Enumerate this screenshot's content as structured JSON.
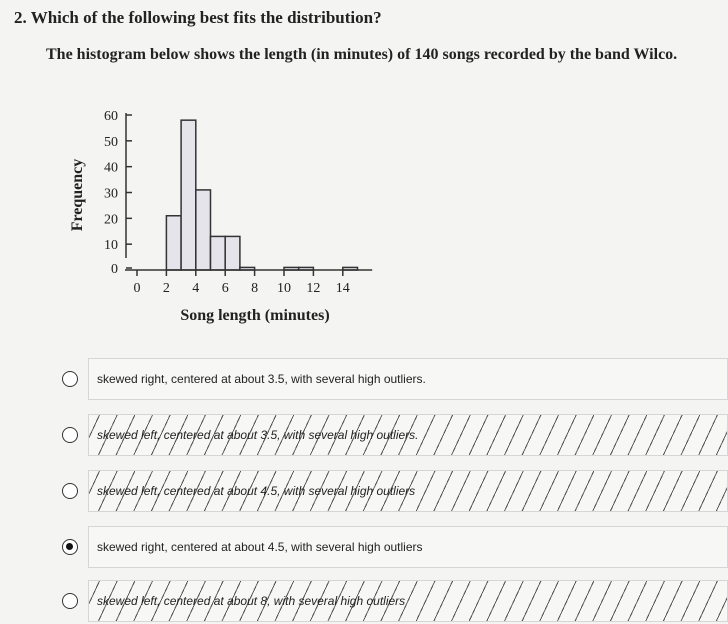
{
  "question": "2.  Which of the following best fits the distribution?",
  "intro": "The histogram below shows the length (in minutes) of 140 songs recorded by the band Wilco.",
  "chart_data": {
    "type": "histogram",
    "x_label": "Song length (minutes)",
    "y_label": "Frequency",
    "bins": [
      0,
      1,
      2,
      3,
      4,
      5,
      6,
      7,
      8,
      9,
      10,
      11,
      12,
      13,
      14,
      15
    ],
    "values": [
      0,
      0,
      21,
      58,
      31,
      13,
      13,
      1,
      0,
      0,
      1,
      1,
      0,
      0,
      1
    ],
    "color": "#e4e4ea",
    "xlim": [
      0,
      16
    ],
    "xticks": [
      0,
      2,
      4,
      6,
      8,
      10,
      12,
      14
    ],
    "ylim": [
      0,
      60
    ],
    "yticks": [
      0,
      10,
      20,
      30,
      40,
      50,
      60
    ]
  },
  "options": [
    "skewed right, centered at about 3.5, with several high outliers.",
    "skewed left, centered at about 3.5, with several high outliers.",
    "skewed left, centered at about 4.5, with several high outliers",
    "skewed right, centered at about 4.5, with several high outliers",
    "skewed left, centered at about 8, with several high outliers"
  ]
}
